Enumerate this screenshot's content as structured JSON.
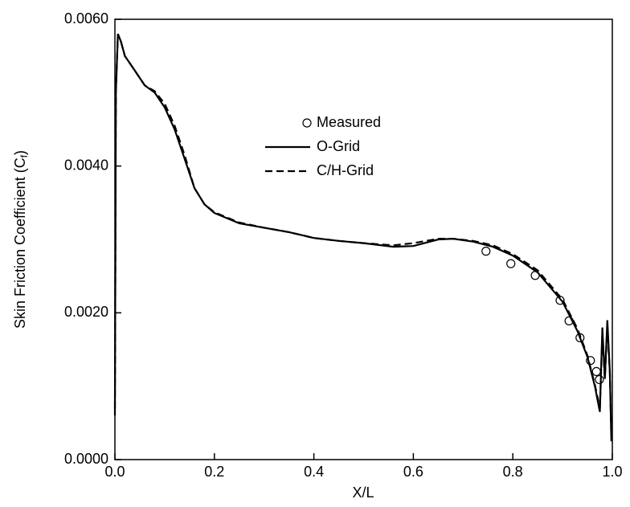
{
  "chart_data": {
    "type": "line",
    "xlabel": "X/L",
    "ylabel": [
      "Skin Friction Coefficient (C",
      "f",
      ")"
    ],
    "xlim": [
      0,
      1
    ],
    "ylim": [
      0,
      0.006
    ],
    "xticks": [
      {
        "value": 0,
        "label": "0.0"
      },
      0.2,
      0.4,
      0.6,
      0.8,
      {
        "value": 1,
        "label": "1.0"
      }
    ],
    "yticks": [
      {
        "value": 0,
        "label": "0.0000"
      },
      {
        "value": 0.002,
        "label": "0.0020"
      },
      {
        "value": 0.004,
        "label": "0.0040"
      },
      {
        "value": 0.006,
        "label": "0.0060"
      }
    ],
    "legend": "upper center",
    "series": [
      {
        "name": "Measured",
        "type": "scatter",
        "color": "#000000",
        "x": [
          0.746,
          0.796,
          0.845,
          0.895,
          0.913,
          0.935,
          0.956,
          0.968,
          0.974
        ],
        "values": [
          0.00284,
          0.00267,
          0.00251,
          0.00217,
          0.00189,
          0.00166,
          0.00135,
          0.0012,
          0.00109
        ]
      },
      {
        "name": "O-Grid",
        "type": "line",
        "dash": "solid",
        "color": "#000000",
        "x": [
          0,
          0.002,
          0.006,
          0.012,
          0.02,
          0.03,
          0.04,
          0.06,
          0.08,
          0.1,
          0.12,
          0.14,
          0.16,
          0.18,
          0.2,
          0.25,
          0.3,
          0.35,
          0.4,
          0.45,
          0.5,
          0.56,
          0.6,
          0.65,
          0.68,
          0.72,
          0.76,
          0.8,
          0.85,
          0.9,
          0.93,
          0.95,
          0.965,
          0.975,
          0.98,
          0.985,
          0.99,
          0.995,
          0.998
        ],
        "values": [
          0.0006,
          0.005,
          0.0058,
          0.0057,
          0.0055,
          0.0054,
          0.0053,
          0.0051,
          0.005,
          0.0048,
          0.0045,
          0.0041,
          0.0037,
          0.00348,
          0.00336,
          0.00322,
          0.00316,
          0.0031,
          0.00302,
          0.00298,
          0.00295,
          0.0029,
          0.00291,
          0.003,
          0.00301,
          0.00297,
          0.0029,
          0.00278,
          0.00255,
          0.00215,
          0.00175,
          0.0014,
          0.001,
          0.00065,
          0.0018,
          0.0011,
          0.0019,
          0.0012,
          0.00025
        ]
      },
      {
        "name": "C/H-Grid",
        "type": "line",
        "dash": "dashed",
        "color": "#000000",
        "x": [
          0,
          0.002,
          0.006,
          0.012,
          0.02,
          0.03,
          0.04,
          0.06,
          0.08,
          0.1,
          0.12,
          0.14,
          0.16,
          0.18,
          0.2,
          0.25,
          0.3,
          0.35,
          0.4,
          0.45,
          0.5,
          0.56,
          0.6,
          0.65,
          0.68,
          0.72,
          0.76,
          0.8,
          0.85,
          0.9,
          0.93,
          0.95,
          0.965,
          0.975,
          0.98,
          0.985,
          0.99,
          0.995,
          0.998
        ],
        "values": [
          0.0007,
          0.005,
          0.0058,
          0.0057,
          0.0055,
          0.0054,
          0.0053,
          0.0051,
          0.00502,
          0.00485,
          0.00455,
          0.00415,
          0.0037,
          0.00348,
          0.00337,
          0.00323,
          0.00316,
          0.0031,
          0.00302,
          0.00298,
          0.00295,
          0.00292,
          0.00295,
          0.00301,
          0.00301,
          0.00298,
          0.00292,
          0.0028,
          0.00258,
          0.00218,
          0.00178,
          0.00142,
          0.00102,
          0.0007,
          0.0017,
          0.0011,
          0.0018,
          0.0012,
          0.0003
        ]
      }
    ]
  }
}
